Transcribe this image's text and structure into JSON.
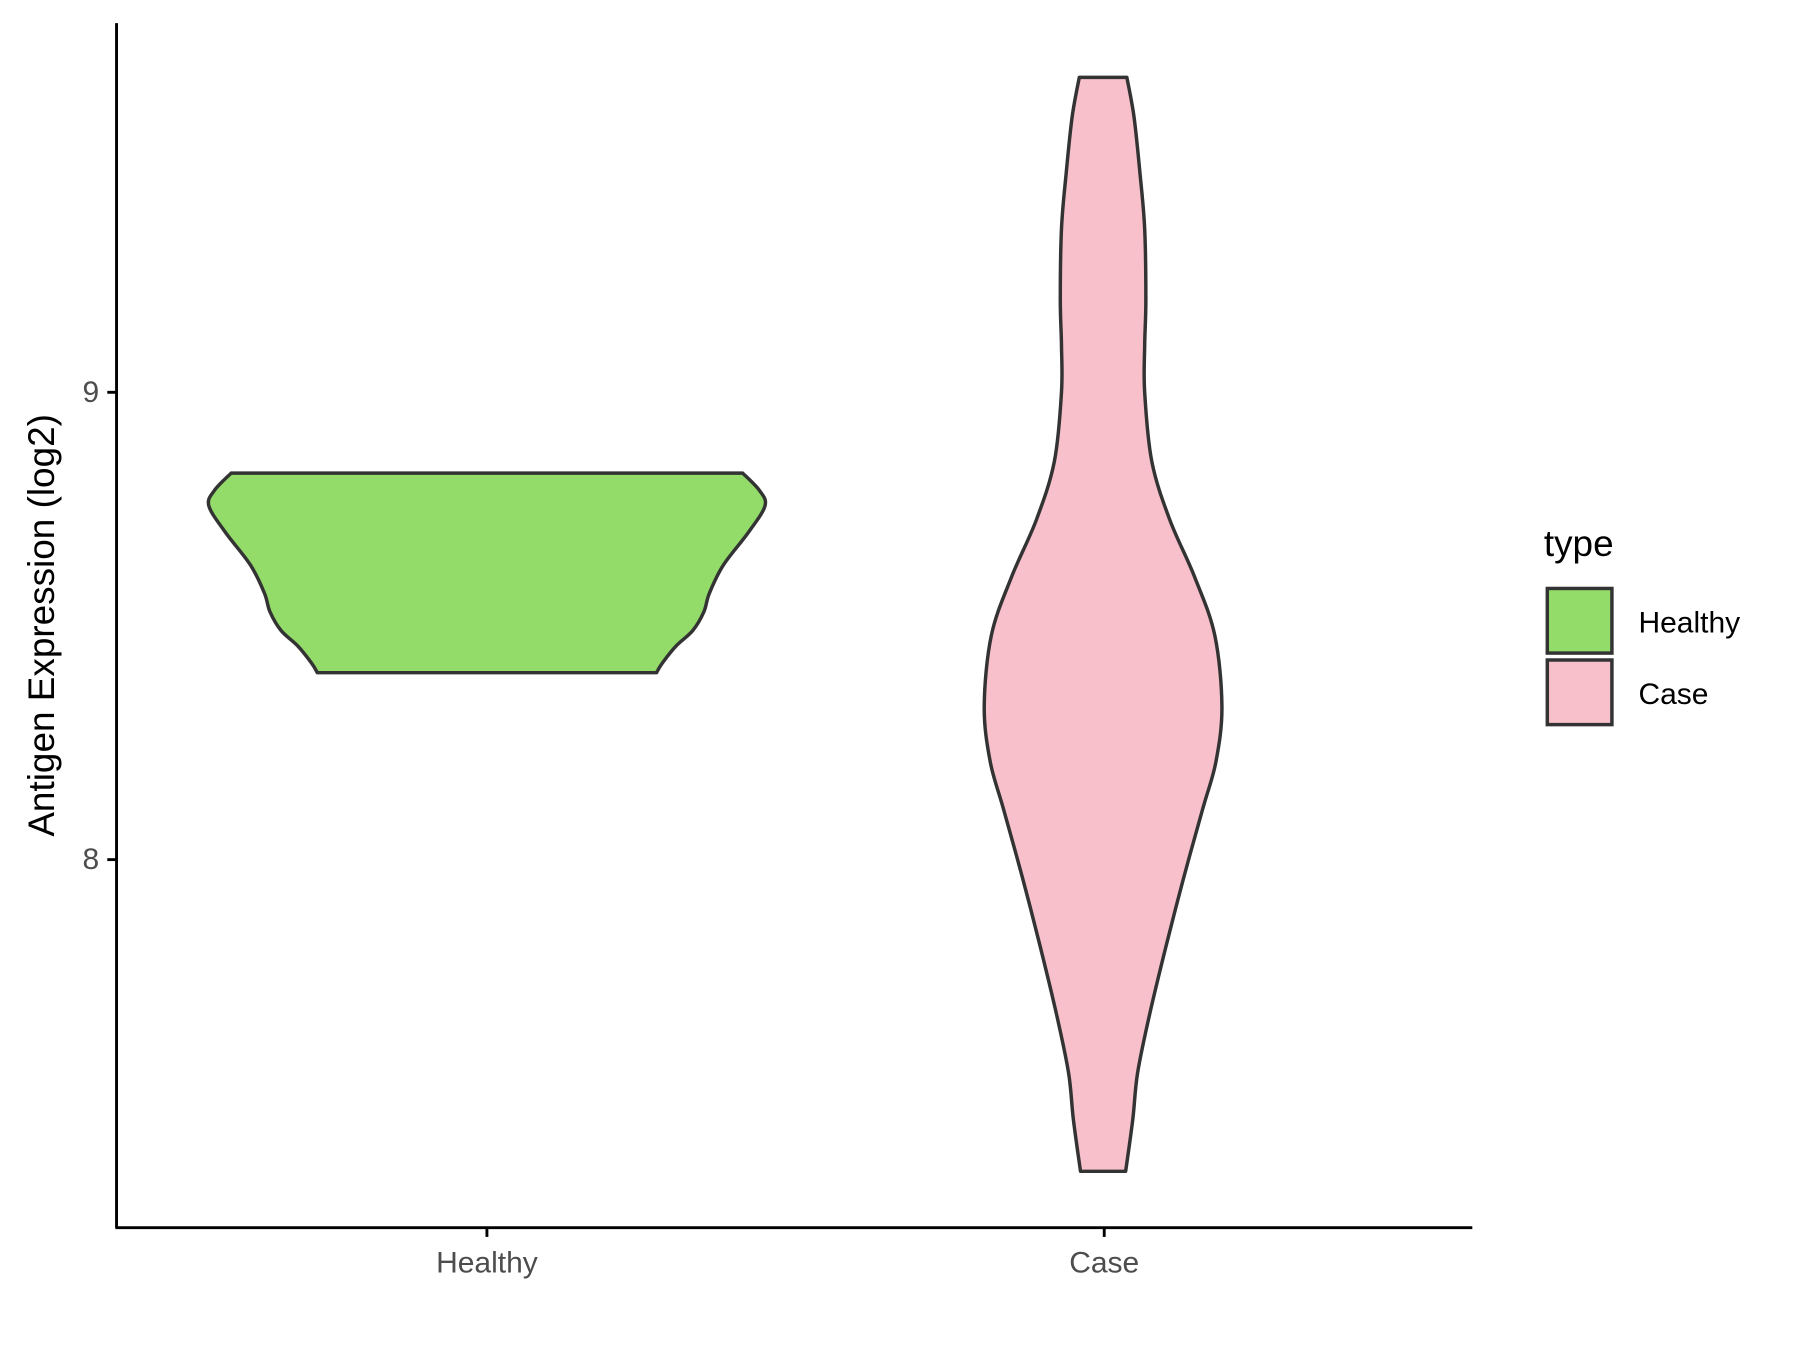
{
  "chart_data": {
    "type": "violin",
    "title": "",
    "xlabel": "",
    "ylabel": "Antigen Expression (log2)",
    "categories": [
      "Healthy",
      "Case"
    ],
    "yticks": [
      8,
      9
    ],
    "ylim": [
      7.22,
      9.79
    ],
    "grid": false,
    "legend": {
      "title": "type",
      "placement": "right",
      "entries": [
        "Healthy",
        "Case"
      ]
    },
    "colors": {
      "Healthy": "#93DC6A",
      "Case": "#F8C0CB",
      "outline": "#333333"
    },
    "series": [
      {
        "name": "Healthy",
        "profile": [
          [
            8.827,
            0.92
          ],
          [
            8.79,
            0.98
          ],
          [
            8.757,
            1.0
          ],
          [
            8.7,
            0.94
          ],
          [
            8.63,
            0.85
          ],
          [
            8.57,
            0.8
          ],
          [
            8.53,
            0.78
          ],
          [
            8.49,
            0.74
          ],
          [
            8.457,
            0.68
          ],
          [
            8.42,
            0.63
          ],
          [
            8.4,
            0.61
          ]
        ]
      },
      {
        "name": "Case",
        "profile": [
          [
            9.674,
            0.2
          ],
          [
            9.59,
            0.26
          ],
          [
            9.47,
            0.31
          ],
          [
            9.35,
            0.35
          ],
          [
            9.198,
            0.36
          ],
          [
            9.1,
            0.35
          ],
          [
            9.0,
            0.35
          ],
          [
            8.852,
            0.41
          ],
          [
            8.728,
            0.56
          ],
          [
            8.605,
            0.77
          ],
          [
            8.48,
            0.94
          ],
          [
            8.328,
            1.0
          ],
          [
            8.21,
            0.95
          ],
          [
            8.11,
            0.84
          ],
          [
            7.963,
            0.68
          ],
          [
            7.815,
            0.53
          ],
          [
            7.667,
            0.39
          ],
          [
            7.543,
            0.29
          ],
          [
            7.444,
            0.25
          ],
          [
            7.333,
            0.19
          ]
        ]
      }
    ]
  }
}
